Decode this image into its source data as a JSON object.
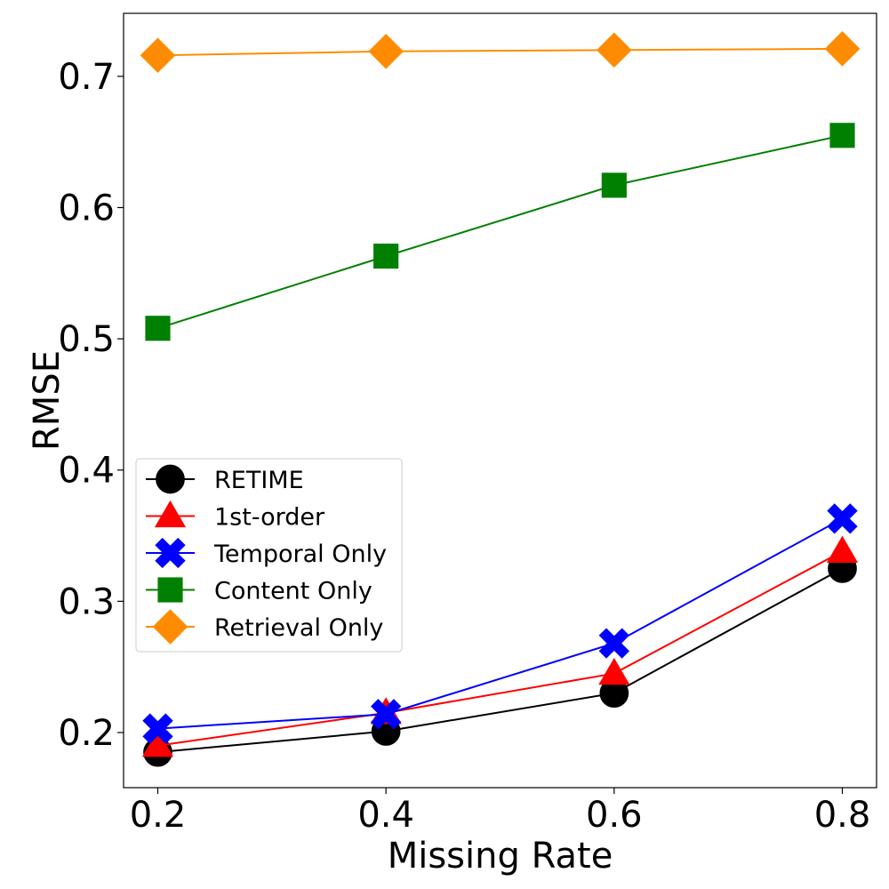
{
  "chart_data": {
    "type": "line",
    "title": "",
    "xlabel": "Missing Rate",
    "ylabel": "RMSE",
    "x": [
      0.2,
      0.4,
      0.6,
      0.8
    ],
    "xlim": [
      0.17,
      0.83
    ],
    "ylim": [
      0.158,
      0.748
    ],
    "xticks": [
      0.2,
      0.4,
      0.6,
      0.8
    ],
    "xtick_labels": [
      "0.2",
      "0.4",
      "0.6",
      "0.8"
    ],
    "yticks": [
      0.2,
      0.3,
      0.4,
      0.5,
      0.6,
      0.7
    ],
    "ytick_labels": [
      "0.2",
      "0.3",
      "0.4",
      "0.5",
      "0.6",
      "0.7"
    ],
    "grid": false,
    "legend_position": "center-left",
    "series": [
      {
        "name": "RETIME",
        "color": "#000000",
        "marker": "circle",
        "values": [
          0.185,
          0.201,
          0.23,
          0.325
        ]
      },
      {
        "name": "1st-order",
        "color": "#ff0000",
        "marker": "triangle",
        "values": [
          0.19,
          0.215,
          0.245,
          0.338
        ]
      },
      {
        "name": "Temporal Only",
        "color": "#0000ff",
        "marker": "x",
        "values": [
          0.203,
          0.214,
          0.268,
          0.363
        ]
      },
      {
        "name": "Content Only",
        "color": "#008000",
        "marker": "square",
        "values": [
          0.508,
          0.563,
          0.617,
          0.655
        ]
      },
      {
        "name": "Retrieval Only",
        "color": "#ff8c00",
        "marker": "diamond",
        "values": [
          0.716,
          0.719,
          0.72,
          0.721
        ]
      }
    ]
  }
}
